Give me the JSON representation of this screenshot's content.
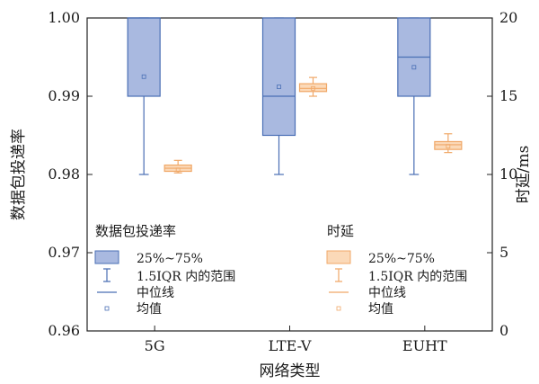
{
  "chart_data": {
    "type": "box",
    "xlabel": "网络类型",
    "ylabel_left": "数据包投递率",
    "ylabel_right": "时延/ms",
    "categories": [
      "5G",
      "LTE-V",
      "EUHT"
    ],
    "ylim_left": [
      0.96,
      1.0
    ],
    "ylim_right": [
      0,
      20
    ],
    "yticks_left": [
      "0.96",
      "0.97",
      "0.98",
      "0.99",
      "1.00"
    ],
    "yticks_right": [
      "0",
      "5",
      "10",
      "15",
      "20"
    ],
    "series": [
      {
        "name": "数据包投递率",
        "axis": "left",
        "color": "#a9b9e0",
        "edge": "#4a6fb5",
        "boxes": [
          {
            "category": "5G",
            "whisker_low": 0.98,
            "q1": 0.99,
            "median": 1.0,
            "q3": 1.0,
            "whisker_high": 1.0,
            "mean": 0.9925
          },
          {
            "category": "LTE-V",
            "whisker_low": 0.98,
            "q1": 0.985,
            "median": 0.99,
            "q3": 1.0,
            "whisker_high": 1.0,
            "mean": 0.9912
          },
          {
            "category": "EUHT",
            "whisker_low": 0.98,
            "q1": 0.99,
            "median": 0.995,
            "q3": 1.0,
            "whisker_high": 1.0,
            "mean": 0.9937
          }
        ]
      },
      {
        "name": "时延",
        "axis": "right",
        "color": "#fbd9b8",
        "edge": "#f0a868",
        "boxes": [
          {
            "category": "5G",
            "whisker_low": 10.1,
            "q1": 10.2,
            "median": 10.4,
            "q3": 10.6,
            "whisker_high": 10.9,
            "mean": 10.3
          },
          {
            "category": "LTE-V",
            "whisker_low": 15.0,
            "q1": 15.3,
            "median": 15.5,
            "q3": 15.8,
            "whisker_high": 16.2,
            "mean": 15.5
          },
          {
            "category": "EUHT",
            "whisker_low": 11.4,
            "q1": 11.6,
            "median": 11.9,
            "q3": 12.1,
            "whisker_high": 12.6,
            "mean": 11.8
          }
        ]
      }
    ],
    "legend": {
      "placement": "lower-left / lower-right inside plot",
      "entries": [
        "25%~75%",
        "1.5IQR 内的范围",
        "中位线",
        "均值"
      ]
    }
  }
}
